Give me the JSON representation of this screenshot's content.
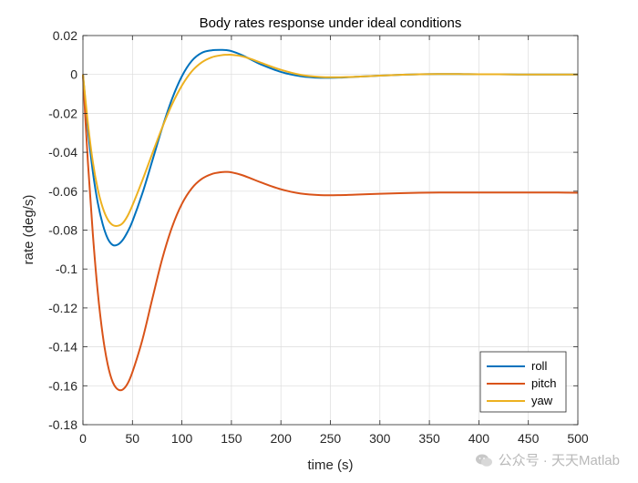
{
  "chart_data": {
    "type": "line",
    "title": "Body rates response under ideal conditions",
    "xlabel": "time (s)",
    "ylabel": "rate (deg/s)",
    "xlim": [
      0,
      500
    ],
    "ylim": [
      -0.18,
      0.02
    ],
    "xticks": [
      0,
      50,
      100,
      150,
      200,
      250,
      300,
      350,
      400,
      450,
      500
    ],
    "xtick_labels": [
      "0",
      "50",
      "100",
      "150",
      "200",
      "250",
      "300",
      "350",
      "400",
      "450",
      "500"
    ],
    "yticks": [
      0.02,
      0,
      -0.02,
      -0.04,
      -0.06,
      -0.08,
      -0.1,
      -0.12,
      -0.14,
      -0.16,
      -0.18
    ],
    "ytick_labels": [
      "0.02",
      "0",
      "-0.02",
      "-0.04",
      "-0.06",
      "-0.08",
      "-0.1",
      "-0.12",
      "-0.14",
      "-0.16",
      "-0.18"
    ],
    "grid": true,
    "legend_position": "bottom-right",
    "x": [
      0,
      5,
      10,
      15,
      20,
      25,
      30,
      35,
      40,
      45,
      50,
      60,
      70,
      80,
      90,
      100,
      110,
      120,
      130,
      140,
      145,
      150,
      160,
      170,
      180,
      200,
      220,
      240,
      260,
      280,
      300,
      320,
      340,
      360,
      380,
      400,
      420,
      440,
      460,
      480,
      500
    ],
    "series": [
      {
        "name": "roll",
        "color": "#0072BD",
        "values": [
          0,
          -0.028,
          -0.05,
          -0.066,
          -0.077,
          -0.0843,
          -0.0876,
          -0.0875,
          -0.0852,
          -0.081,
          -0.0755,
          -0.0612,
          -0.0445,
          -0.0276,
          -0.0126,
          -0.0009,
          0.007,
          0.0111,
          0.0124,
          0.0126,
          0.0125,
          0.012,
          0.0101,
          0.0076,
          0.0051,
          0.0013,
          -0.0009,
          -0.0017,
          -0.0016,
          -0.0011,
          -0.0006,
          -0.0002,
          0.0001,
          0.0002,
          0.0002,
          0.0001,
          0.0001,
          0,
          0,
          0,
          0
        ]
      },
      {
        "name": "pitch",
        "color": "#D95319",
        "values": [
          0,
          -0.045,
          -0.082,
          -0.112,
          -0.134,
          -0.149,
          -0.158,
          -0.1618,
          -0.162,
          -0.159,
          -0.153,
          -0.1365,
          -0.1155,
          -0.095,
          -0.0785,
          -0.0665,
          -0.0585,
          -0.0537,
          -0.0512,
          -0.0502,
          -0.0501,
          -0.0503,
          -0.0516,
          -0.0535,
          -0.0555,
          -0.059,
          -0.0612,
          -0.062,
          -0.062,
          -0.0617,
          -0.0613,
          -0.061,
          -0.0608,
          -0.0607,
          -0.0607,
          -0.0607,
          -0.0607,
          -0.0607,
          -0.0607,
          -0.0607,
          -0.0608
        ]
      },
      {
        "name": "yaw",
        "color": "#EDB120",
        "values": [
          0,
          -0.025,
          -0.045,
          -0.059,
          -0.0685,
          -0.0745,
          -0.0774,
          -0.0778,
          -0.0765,
          -0.0728,
          -0.0673,
          -0.0545,
          -0.0408,
          -0.0274,
          -0.0154,
          -0.0057,
          0.0016,
          0.0062,
          0.0088,
          0.0099,
          0.0101,
          0.0101,
          0.0094,
          0.0079,
          0.006,
          0.0024,
          -0.0002,
          -0.0013,
          -0.0014,
          -0.0011,
          -0.0006,
          -0.0002,
          0.0001,
          0.0002,
          0.0002,
          0.0001,
          0.0001,
          0,
          0,
          0,
          0
        ]
      }
    ]
  },
  "watermark": {
    "text": "公众号 · 天天Matlab",
    "icon": "wechat-icon"
  }
}
